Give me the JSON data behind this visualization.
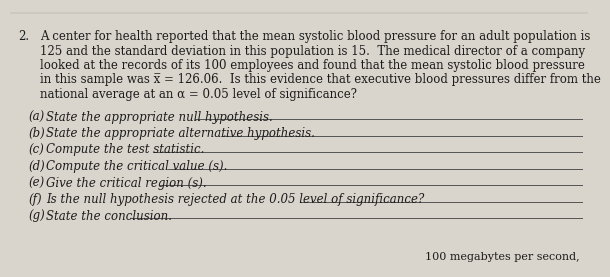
{
  "background_color": "#d9d5cc",
  "text_color": "#1c1c1c",
  "question_number": "2.",
  "intro_lines": [
    "A center for health reported that the mean systolic blood pressure for an adult population is",
    "125 and the standard deviation in this population is 15.  The medical director of a company",
    "looked at the records of its 100 employees and found that the mean systolic blood pressure",
    "in this sample was x̅ = 126.06.  Is this evidence that executive blood pressures differ from the",
    "national average at an α = 0.05 level of significance?"
  ],
  "parts": [
    {
      "label": "(a)",
      "text": "State the appropriate null hypothesis."
    },
    {
      "label": "(b)",
      "text": "State the appropriate alternative hypothesis."
    },
    {
      "label": "(c)",
      "text": "Compute the test statistic."
    },
    {
      "label": "(d)",
      "text": "Compute the critical value (s)."
    },
    {
      "label": "(e)",
      "text": "Give the critical region (s)."
    },
    {
      "label": "(f)",
      "text": "Is the null hypothesis rejected at the 0.05 level of significance?"
    },
    {
      "label": "(g)",
      "text": "State the conclusion."
    }
  ],
  "footer_text": "100 megabytes per second,",
  "font_size_intro": 8.5,
  "font_size_parts": 8.5,
  "font_size_footer": 8.0,
  "line_color": "#555555",
  "line_width": 0.7
}
